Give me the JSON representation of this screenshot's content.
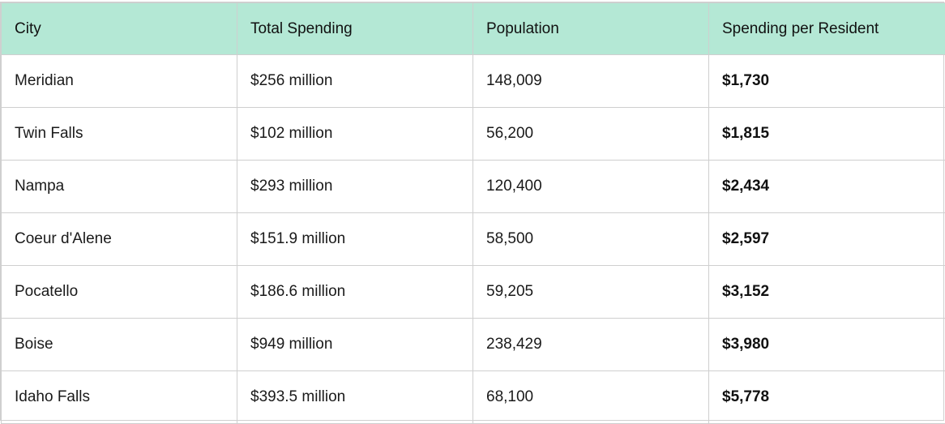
{
  "table": {
    "headers": [
      "City",
      "Total Spending",
      "Population",
      "Spending per Resident"
    ],
    "rows": [
      [
        "Meridian",
        "$256 million",
        "148,009",
        "$1,730"
      ],
      [
        "Twin Falls",
        "$102 million",
        "56,200",
        "$1,815"
      ],
      [
        "Nampa",
        "$293 million",
        "120,400",
        "$2,434"
      ],
      [
        "Coeur d'Alene",
        "$151.9 million",
        "58,500",
        "$2,597"
      ],
      [
        "Pocatello",
        "$186.6 million",
        "59,205",
        "$3,152"
      ],
      [
        "Boise",
        "$949 million",
        "238,429",
        "$3,980"
      ],
      [
        "Idaho Falls",
        "$393.5 million",
        "68,100",
        "$5,778"
      ]
    ]
  },
  "colors": {
    "header_background": "#b4e8d5",
    "border": "#cfcfcf"
  }
}
